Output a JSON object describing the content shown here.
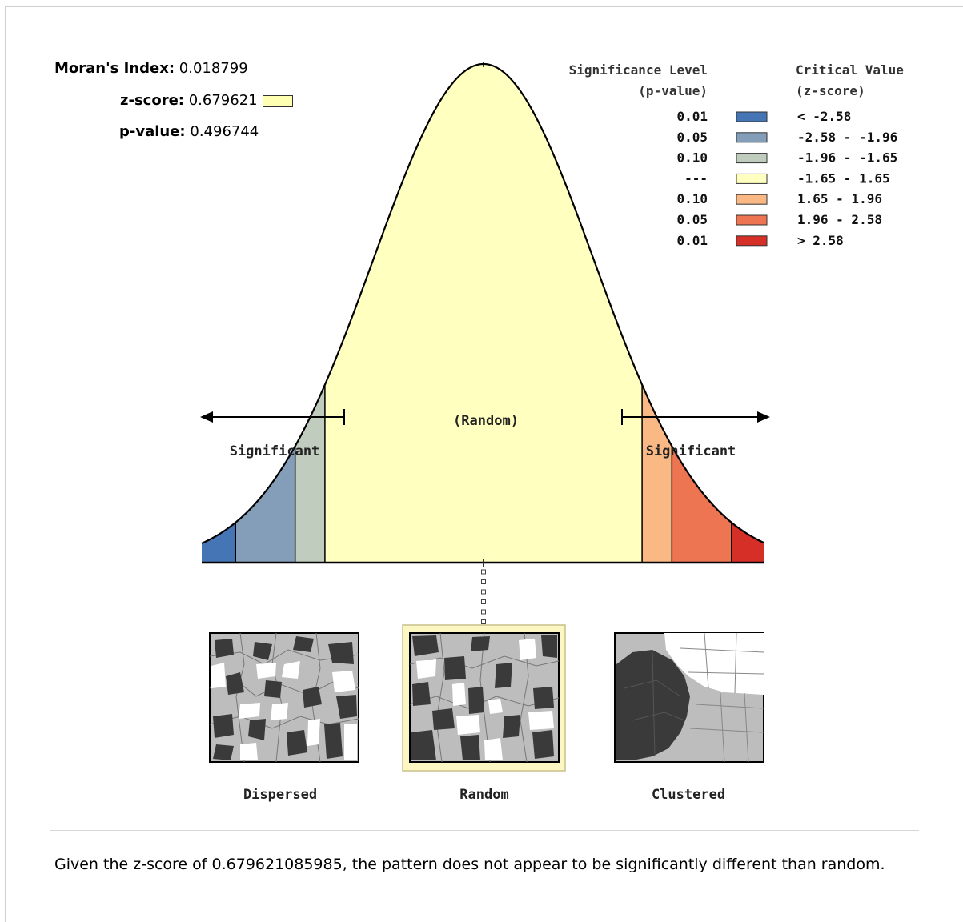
{
  "stats": {
    "morans_index_label": "Moran's Index:",
    "morans_index_value": "0.018799",
    "z_score_label": "z-score:",
    "z_score_value": "0.679621",
    "p_value_label": "p-value:",
    "p_value_value": "0.496744"
  },
  "legend": {
    "significance_header_1": "Significance Level",
    "significance_header_2": "(p-value)",
    "critical_header_1": "Critical Value",
    "critical_header_2": "(z-score)",
    "rows": [
      {
        "p": "0.01",
        "z": "< -2.58",
        "color": "#4575b5"
      },
      {
        "p": "0.05",
        "z": "-2.58 - -1.96",
        "color": "#849eba"
      },
      {
        "p": "0.10",
        "z": "-1.96 - -1.65",
        "color": "#c0ccbe"
      },
      {
        "p": "---",
        "z": "-1.65 - 1.65",
        "color": "#ffffbf"
      },
      {
        "p": "0.10",
        "z": "1.65 - 1.96",
        "color": "#fab984"
      },
      {
        "p": "0.05",
        "z": "1.96 - 2.58",
        "color": "#ed7551"
      },
      {
        "p": "0.01",
        "z": "> 2.58",
        "color": "#d62f27"
      }
    ]
  },
  "curve": {
    "random_label": "(Random)",
    "left_significant": "Significant",
    "right_significant": "Significant",
    "marker_z": 0.679621
  },
  "patterns": {
    "dispersed": "Dispersed",
    "random": "Random",
    "clustered": "Clustered"
  },
  "conclusion": "Given the z-score of 0.679621085985, the pattern does not appear to be significantly different than random."
}
